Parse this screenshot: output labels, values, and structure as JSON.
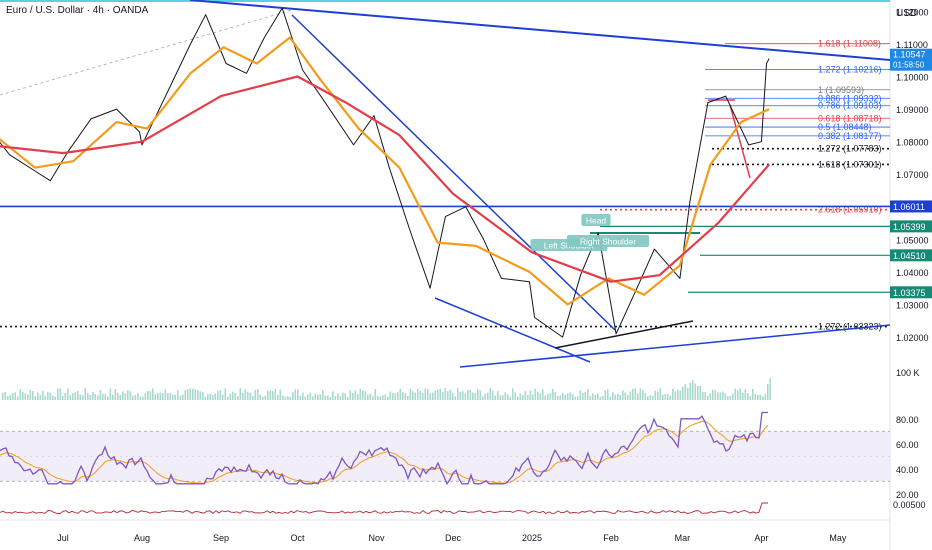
{
  "chart_data": {
    "type": "line",
    "title": "Euro / U.S. Dollar · 4h · OANDA",
    "currency": "USD",
    "x_axis": {
      "ticks": [
        "Jul",
        "Aug",
        "Sep",
        "Oct",
        "Nov",
        "Dec",
        "2025",
        "Feb",
        "Mar",
        "Apr",
        "May"
      ]
    },
    "price_axis": {
      "range": [
        1.0105,
        1.1235
      ],
      "ticks": [
        "1.12000",
        "1.11000",
        "1.10000",
        "1.09000",
        "1.08000",
        "1.07000",
        "1.06000",
        "1.05000",
        "1.04000",
        "1.03000",
        "1.02000"
      ],
      "current": {
        "price": "1.10547",
        "countdown": "01:58:50"
      },
      "tags": [
        {
          "value": "1.06011",
          "price": 1.06011,
          "color": "#1e3fd4"
        },
        {
          "value": "1.05399",
          "price": 1.05399,
          "color": "#178a75"
        },
        {
          "value": "1.04510",
          "price": 1.0451,
          "color": "#178a75"
        },
        {
          "value": "1.03375",
          "price": 1.03375,
          "color": "#178a75"
        }
      ]
    },
    "series": [
      {
        "name": "",
        "kind": "price",
        "color": "#131722",
        "points": [
          [
            "2024-06-01",
            1.085
          ],
          [
            "2024-06-10",
            1.076
          ],
          [
            "2024-06-20",
            1.071
          ],
          [
            "2024-06-26",
            1.068
          ],
          [
            "2024-07-03",
            1.077
          ],
          [
            "2024-07-12",
            1.087
          ],
          [
            "2024-07-22",
            1.09
          ],
          [
            "2024-07-31",
            1.083
          ],
          [
            "2024-08-01",
            1.079
          ],
          [
            "2024-08-09",
            1.092
          ],
          [
            "2024-08-20",
            1.11
          ],
          [
            "2024-08-26",
            1.119
          ],
          [
            "2024-09-03",
            1.104
          ],
          [
            "2024-09-11",
            1.101
          ],
          [
            "2024-09-18",
            1.112
          ],
          [
            "2024-09-25",
            1.121
          ],
          [
            "2024-10-03",
            1.102
          ],
          [
            "2024-10-11",
            1.093
          ],
          [
            "2024-10-23",
            1.079
          ],
          [
            "2024-10-31",
            1.088
          ],
          [
            "2024-11-06",
            1.072
          ],
          [
            "2024-11-14",
            1.053
          ],
          [
            "2024-11-22",
            1.035
          ],
          [
            "2024-11-28",
            1.057
          ],
          [
            "2024-12-06",
            1.06
          ],
          [
            "2024-12-13",
            1.05
          ],
          [
            "2024-12-20",
            1.038
          ],
          [
            "2024-12-31",
            1.037
          ],
          [
            "2025-01-02",
            1.026
          ],
          [
            "2025-01-13",
            1.02
          ],
          [
            "2025-01-20",
            1.039
          ],
          [
            "2025-01-27",
            1.052
          ],
          [
            "2025-02-03",
            1.021
          ],
          [
            "2025-02-10",
            1.033
          ],
          [
            "2025-02-18",
            1.047
          ],
          [
            "2025-02-28",
            1.038
          ],
          [
            "2025-03-04",
            1.062
          ],
          [
            "2025-03-11",
            1.092
          ],
          [
            "2025-03-18",
            1.094
          ],
          [
            "2025-03-27",
            1.079
          ],
          [
            "2025-04-01",
            1.08
          ],
          [
            "2025-04-03",
            1.104
          ],
          [
            "2025-04-04",
            1.1055
          ]
        ]
      },
      {
        "name": "",
        "kind": "ma-fast",
        "color": "#f49b1c",
        "points": [
          [
            "2024-06-01",
            1.084
          ],
          [
            "2024-06-20",
            1.072
          ],
          [
            "2024-07-05",
            1.074
          ],
          [
            "2024-07-22",
            1.086
          ],
          [
            "2024-08-03",
            1.084
          ],
          [
            "2024-08-20",
            1.101
          ],
          [
            "2024-09-02",
            1.109
          ],
          [
            "2024-09-15",
            1.104
          ],
          [
            "2024-09-28",
            1.112
          ],
          [
            "2024-10-10",
            1.099
          ],
          [
            "2024-10-25",
            1.084
          ],
          [
            "2024-11-10",
            1.072
          ],
          [
            "2024-11-25",
            1.049
          ],
          [
            "2024-12-10",
            1.048
          ],
          [
            "2024-12-31",
            1.04
          ],
          [
            "2025-01-15",
            1.03
          ],
          [
            "2025-01-31",
            1.038
          ],
          [
            "2025-02-14",
            1.033
          ],
          [
            "2025-02-28",
            1.042
          ],
          [
            "2025-03-12",
            1.073
          ],
          [
            "2025-03-24",
            1.086
          ],
          [
            "2025-04-04",
            1.09
          ]
        ]
      },
      {
        "name": "",
        "kind": "ma-slow",
        "color": "#e33d4a",
        "points": [
          [
            "2024-06-01",
            1.079
          ],
          [
            "2024-07-01",
            1.0765
          ],
          [
            "2024-08-01",
            1.08
          ],
          [
            "2024-09-01",
            1.094
          ],
          [
            "2024-10-01",
            1.1
          ],
          [
            "2024-10-20",
            1.092
          ],
          [
            "2024-11-10",
            1.082
          ],
          [
            "2024-12-01",
            1.064
          ],
          [
            "2025-01-01",
            1.046
          ],
          [
            "2025-02-01",
            1.037
          ],
          [
            "2025-02-20",
            1.039
          ],
          [
            "2025-03-15",
            1.055
          ],
          [
            "2025-04-04",
            1.073
          ]
        ]
      }
    ],
    "fib_levels": [
      {
        "ratio": "1.618",
        "price": 1.11008,
        "label": "1.618 (1.11008)",
        "color": "#e33d4a"
      },
      {
        "ratio": "1.272",
        "price": 1.10216,
        "label": "1.272 (1.10216)",
        "color": "#2962ff"
      },
      {
        "ratio": "1",
        "price": 1.09593,
        "label": "1 (1.09593)",
        "color": "#787b86"
      },
      {
        "ratio": "0.886",
        "price": 1.09332,
        "label": "0.886 (1.09332)",
        "color": "#2962ff"
      },
      {
        "ratio": "0.786",
        "price": 1.09103,
        "label": "0.786 (1.09103)",
        "color": "#2962ff"
      },
      {
        "ratio": "0.618",
        "price": 1.08718,
        "label": "0.618 (1.08718)",
        "color": "#e33d4a"
      },
      {
        "ratio": "0.5",
        "price": 1.08448,
        "label": "0.5 (1.08448)",
        "color": "#2962ff"
      },
      {
        "ratio": "0.382",
        "price": 1.08177,
        "label": "0.382 (1.08177)",
        "color": "#2962ff"
      },
      {
        "ratio": "1.272",
        "price": 1.07783,
        "label": "1.272 (1.07783)",
        "color": "#131722"
      },
      {
        "ratio": "1.618",
        "price": 1.07301,
        "label": "1.618 (1.07301)",
        "color": "#131722"
      },
      {
        "ratio": "2.618",
        "price": 1.0591,
        "label": "2.618 (1.05910)",
        "color": "#e33d4a"
      },
      {
        "ratio": "1.272",
        "price": 1.02323,
        "label": "1.272 (1.02323)",
        "color": "#131722"
      }
    ],
    "annotations": [
      "Head",
      "Left Shoulder",
      "Right Shoulder"
    ],
    "volume": {
      "scale_label": "100 K",
      "color": "#a9d8cf"
    },
    "rsi": {
      "ticks": [
        "80.00",
        "60.00",
        "40.00",
        "20.00"
      ],
      "range": [
        15,
        95
      ],
      "band": [
        30,
        70
      ],
      "color": "#7e57c2",
      "signal_color": "#f49b1c",
      "last": 85
    },
    "bottom_indicator": {
      "label": "0.00500",
      "color": "#b22833"
    }
  }
}
